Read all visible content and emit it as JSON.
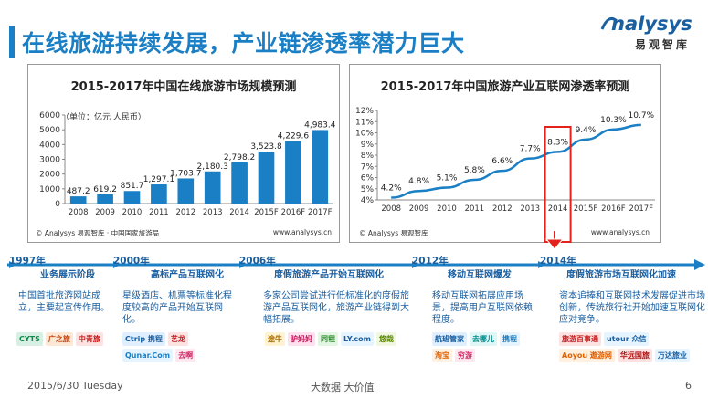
{
  "page": {
    "title": "在线旅游持续发展，产业链渗透率潜力巨大",
    "footer_date": "2015/6/30 Tuesday",
    "footer_center": "大数据  大价值",
    "page_number": "6"
  },
  "logo": {
    "name": "nalysys",
    "cn": "易观智库"
  },
  "charts": {
    "left": {
      "title": "2015-2017年中国在线旅游市场规模预测",
      "unit": "（单位：亿元 人民币）",
      "source": "© Analysys 易观智库 · 中国国家旅游局",
      "site": "www.analysys.cn"
    },
    "right": {
      "title": "2015-2017年中国旅游产业互联网渗透率预测",
      "source": "© Analysys 易观智库",
      "site": "www.analysys.cn"
    }
  },
  "chart_data": [
    {
      "type": "bar",
      "title": "2015-2017年中国在线旅游市场规模预测",
      "ylabel": "（单位：亿元 人民币）",
      "categories": [
        "2008",
        "2009",
        "2010",
        "2011",
        "2012",
        "2013",
        "2014",
        "2015F",
        "2016F",
        "2017F"
      ],
      "values": [
        487.2,
        619.2,
        851.7,
        1297.1,
        1703.7,
        2180.3,
        2798.2,
        3523.8,
        4229.6,
        4983.4
      ],
      "data_labels": [
        "487.2",
        "619.2",
        "851.7",
        "1,297.1",
        "1,703.7",
        "2,180.3",
        "2,798.2",
        "3,523.8",
        "4,229.6",
        "4,983.4"
      ],
      "y_ticks": [
        "0",
        "1000",
        "2000",
        "3000",
        "4000",
        "5000",
        "6000"
      ],
      "ylim": [
        0,
        6000
      ],
      "color": "#1a7fc4",
      "grid": false
    },
    {
      "type": "line",
      "title": "2015-2017年中国旅游产业互联网渗透率预测",
      "categories": [
        "2008",
        "2009",
        "2010",
        "2011",
        "2012",
        "2013",
        "2014",
        "2015F",
        "2016F",
        "2017F"
      ],
      "values": [
        4.2,
        4.8,
        5.1,
        5.8,
        6.6,
        7.7,
        8.3,
        9.4,
        10.3,
        10.7
      ],
      "data_labels": [
        "4.2%",
        "4.8%",
        "5.1%",
        "5.8%",
        "6.6%",
        "7.7%",
        "8.3%",
        "9.4%",
        "10.3%",
        "10.7%"
      ],
      "y_ticks": [
        "4%",
        "5%",
        "6%",
        "7%",
        "8%",
        "9%",
        "10%",
        "11%",
        "12%"
      ],
      "ylim": [
        4,
        12
      ],
      "highlight_category": "2014",
      "color": "#1a7fc4",
      "highlight_color": "#e3231b",
      "grid": false
    }
  ],
  "timeline": {
    "stages": [
      {
        "year": "1997年",
        "label": "业务展示阶段",
        "desc": "中国首批旅游网站成立，主要起宣传作用。",
        "brands": [
          "CYTS",
          "广之旅",
          "中青旅"
        ]
      },
      {
        "year": "2000年",
        "label": "高标产品互联网化",
        "desc": "星级酒店、机票等标准化程度较高的产品开始互联网化。",
        "brands": [
          "Ctrip 携程",
          "艺龙",
          "Qunar.Com",
          "去啊"
        ]
      },
      {
        "year": "2006年",
        "label": "度假旅游产品开始互联网化",
        "desc": "多家公司尝试进行低标准化的度假旅游产品互联网化，旅游产业链得到大幅拓展。",
        "brands": [
          "途牛",
          "驴妈妈",
          "同程",
          "LY.com",
          "悠哉"
        ]
      },
      {
        "year": "2012年",
        "label": "移动互联网爆发",
        "desc": "移动互联网拓展应用场景，提高用户互联网依赖程度。",
        "brands": [
          "航班管家",
          "去哪儿",
          "携程",
          "淘宝",
          "穷游"
        ]
      },
      {
        "year": "2014年",
        "label": "度假旅游市场互联网化加速",
        "desc": "资本追捧和互联网技术发展促进市场创新，传统旅行社开始加速互联网化应对竞争。",
        "brands": [
          "旅游百事通",
          "utour 众信",
          "Aoyou 遨游网",
          "华远国旅",
          "万达旅业"
        ]
      }
    ]
  },
  "colors": {
    "accent": "#1a7fc4",
    "accent_dark": "#1a5fa0",
    "highlight": "#e3231b",
    "text": "#333333"
  }
}
